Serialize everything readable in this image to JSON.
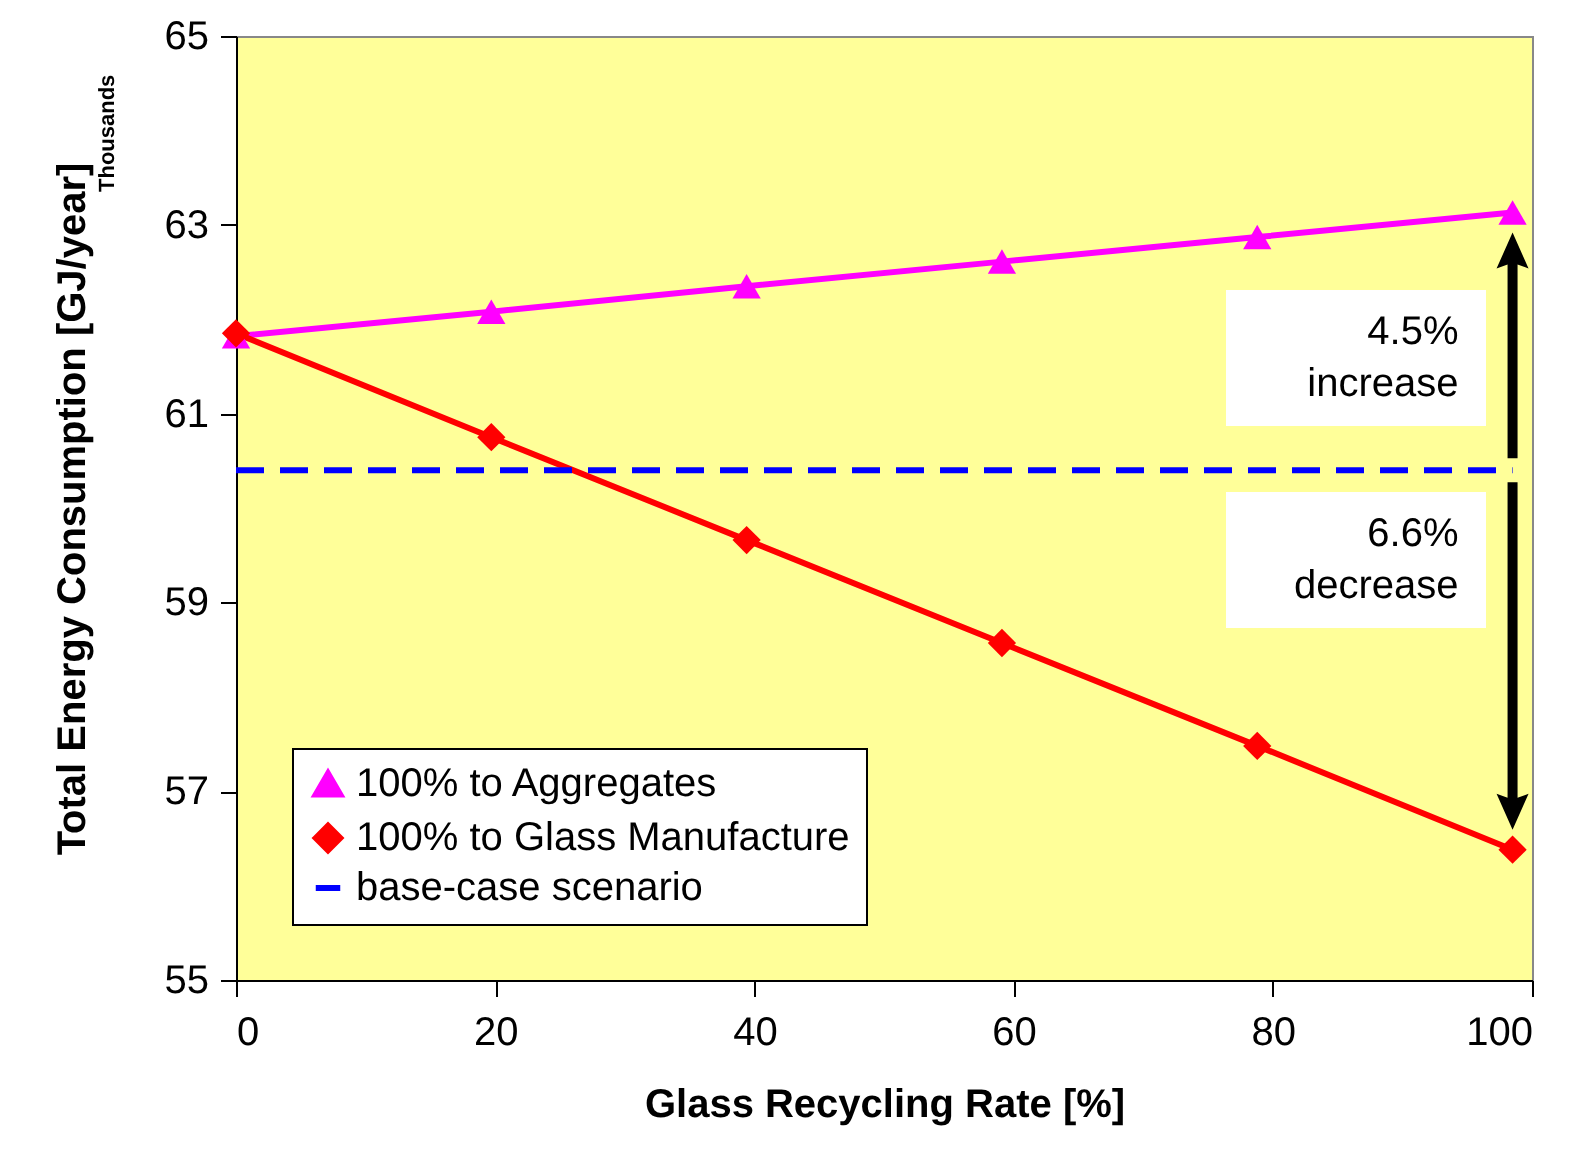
{
  "chart_data": {
    "type": "line",
    "xlabel": "Glass Recycling Rate  [%]",
    "ylabel": "Total Energy Consumption  [GJ/year]",
    "x": [
      0,
      19.7,
      39.4,
      59.1,
      78.8,
      98.5
    ],
    "series": [
      {
        "name": "100% to Aggregates",
        "color": "#ff00ff",
        "marker": "triangle",
        "line_style": "solid",
        "values": [
          61.82,
          62.08,
          62.35,
          62.61,
          62.87,
          63.13
        ]
      },
      {
        "name": "100% to Glass Manufacture",
        "color": "#ff0000",
        "marker": "diamond",
        "line_style": "solid",
        "values": [
          61.85,
          60.75,
          59.66,
          58.57,
          57.48,
          56.38
        ]
      },
      {
        "name": "base-case scenario",
        "color": "#0000ff",
        "marker": "none",
        "line_style": "dashed",
        "x": [
          0,
          98.5
        ],
        "values": [
          60.4,
          60.4
        ]
      }
    ],
    "xlim": [
      0,
      100
    ],
    "xticks": [
      0,
      20,
      40,
      60,
      80,
      100
    ],
    "ylim": [
      55,
      65
    ],
    "yticks": [
      55,
      57,
      59,
      61,
      63,
      65
    ],
    "grid": false,
    "legend": "bottom left",
    "annotations": [
      "Thousands",
      "4.5% increase",
      "6.6% decrease"
    ]
  }
}
